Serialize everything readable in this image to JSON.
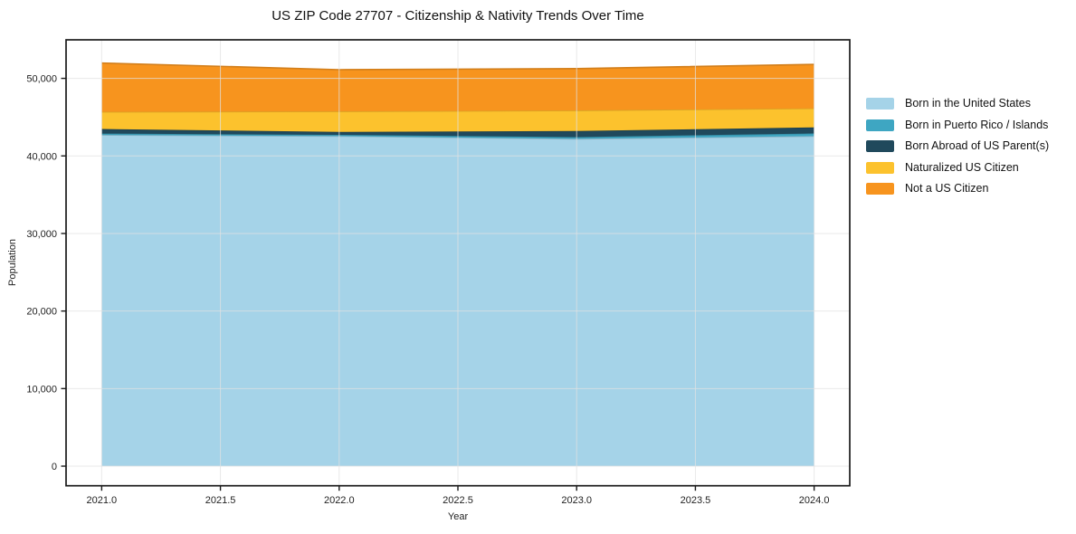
{
  "page": {
    "background": "#ffffff"
  },
  "chart_data": {
    "type": "area",
    "stacked": true,
    "title": "US ZIP Code 27707 - Citizenship & Nativity Trends Over Time",
    "xlabel": "Year",
    "ylabel": "Population",
    "x": [
      2021,
      2022,
      2023,
      2024
    ],
    "series": [
      {
        "name": "Born in the United States",
        "color": "#a5d3e8",
        "values": [
          42700,
          42550,
          42200,
          42550
        ]
      },
      {
        "name": "Born in Puerto Rico / Islands",
        "color": "#3ea6c2",
        "values": [
          180,
          170,
          230,
          350
        ]
      },
      {
        "name": "Born Abroad of US Parent(s)",
        "color": "#20495c",
        "values": [
          590,
          370,
          780,
          780
        ]
      },
      {
        "name": "Naturalized US Citizen",
        "color": "#fcc22d",
        "values": [
          2210,
          2650,
          2650,
          2450
        ]
      },
      {
        "name": "Not a US Citizen",
        "color": "#f7941e",
        "values": [
          6300,
          5380,
          5400,
          5670
        ]
      }
    ],
    "x_ticks": [
      2021.0,
      2021.5,
      2022.0,
      2022.5,
      2023.0,
      2023.5,
      2024.0
    ],
    "x_tick_labels": [
      "2021.0",
      "2021.5",
      "2022.0",
      "2022.5",
      "2023.0",
      "2023.5",
      "2024.0"
    ],
    "y_ticks": [
      0,
      10000,
      20000,
      30000,
      40000,
      50000
    ],
    "y_tick_labels": [
      "0",
      "10,000",
      "20,000",
      "30,000",
      "40,000",
      "50,000"
    ],
    "xlim": [
      2020.85,
      2024.15
    ],
    "ylim": [
      -2530,
      54970
    ],
    "grid": true,
    "legend_position": "right-outside"
  },
  "style": {
    "grid_color": "rgba(225,225,225,0.75)",
    "axis_color": "#1a1a1a",
    "tick_text_color": "#222222"
  }
}
